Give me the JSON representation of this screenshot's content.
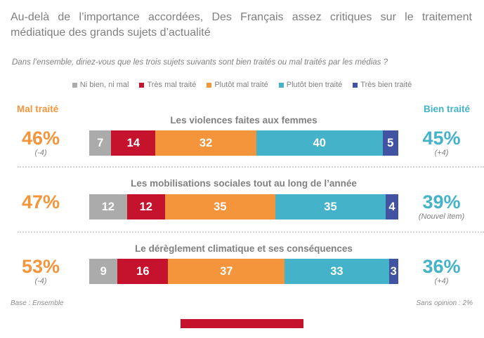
{
  "header": {
    "title_line1": "Au-delà de l’importance accordées, Des Français assez critiques sur le traitement",
    "title_line2": "médiatique des grands sujets d’actualité",
    "question": "Dans l’ensemble, diriez-vous que les trois sujets suivants sont bien traités ou mal traités par les médias ?"
  },
  "legend": {
    "items": [
      {
        "label": "Ni bien, ni mal",
        "color": "#ababab"
      },
      {
        "label": "Très mal traité",
        "color": "#c5122d"
      },
      {
        "label": "Plutôt mal traité",
        "color": "#f5953b"
      },
      {
        "label": "Plutôt bien traité",
        "color": "#44b3c9"
      },
      {
        "label": "Très bien traité",
        "color": "#4353a4"
      }
    ]
  },
  "column_headers": {
    "left": "Mal traité",
    "right": "Bien traité"
  },
  "chart_data": {
    "type": "bar",
    "variant": "stacked-horizontal",
    "unit": "%",
    "categories": [
      "Ni bien, ni mal",
      "Très mal traité",
      "Plutôt mal traité",
      "Plutôt bien traité",
      "Très bien traité"
    ],
    "palette": [
      "#ababab",
      "#c5122d",
      "#f5953b",
      "#44b3c9",
      "#4353a4"
    ],
    "rows": [
      {
        "title": "Les violences faites aux femmes",
        "values": [
          7,
          14,
          32,
          40,
          5
        ],
        "mal_traite_total": "46%",
        "mal_traite_note": "(-4)",
        "bien_traite_total": "45%",
        "bien_traite_note": "(+4)"
      },
      {
        "title": "Les mobilisations sociales tout au long de l’année",
        "values": [
          12,
          12,
          35,
          35,
          4
        ],
        "mal_traite_total": "47%",
        "mal_traite_note": "",
        "bien_traite_total": "39%",
        "bien_traite_note": "(Nouvel item)"
      },
      {
        "title": "Le dérèglement climatique et ses conséquences",
        "values": [
          9,
          16,
          37,
          33,
          3
        ],
        "mal_traite_total": "53%",
        "mal_traite_note": "(-4)",
        "bien_traite_total": "36%",
        "bien_traite_note": "(+4)"
      }
    ]
  },
  "footer": {
    "base": "Base : Ensemble",
    "sans_opinion": "Sans opinion : 2%"
  },
  "theme": {
    "mal_traite_color": "#f5953b",
    "bien_traite_color": "#44b3c9",
    "title_gray": "#7f7f7f",
    "footer_bar_color": "#c5122d"
  }
}
